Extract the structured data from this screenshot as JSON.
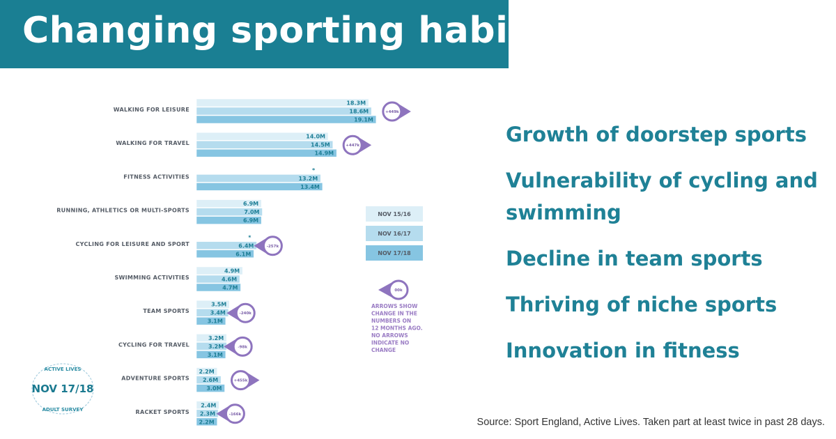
{
  "title": "Changing sporting habits",
  "takeaways": [
    "Growth of doorstep sports",
    "Vulnerability of cycling and swimming",
    "Decline in team sports",
    "Thriving of niche sports",
    "Innovation in fitness"
  ],
  "source": "Source: Sport England, Active Lives. Taken part at least twice in past 28 days.",
  "badge": {
    "top": "ACTIVE LIVES",
    "main": "NOV 17/18",
    "bottom": "ADULT SURVEY"
  },
  "colors": {
    "banner": "#1a7f93",
    "bar1": "#ddeff7",
    "bar2": "#b5dcee",
    "bar3": "#86c5e2",
    "arrow": "#8e74be",
    "text": "#1f8196"
  },
  "chart_data": {
    "type": "bar",
    "orientation": "horizontal",
    "categories": [
      "WALKING FOR LEISURE",
      "WALKING FOR TRAVEL",
      "FITNESS ACTIVITIES",
      "RUNNING, ATHLETICS OR MULTI-SPORTS",
      "CYCLING FOR LEISURE AND SPORT",
      "SWIMMING ACTIVITIES",
      "TEAM SPORTS",
      "CYCLING FOR TRAVEL",
      "ADVENTURE SPORTS",
      "RACKET SPORTS"
    ],
    "series": [
      {
        "name": "NOV 15/16",
        "values": [
          18.3,
          14.0,
          null,
          6.9,
          null,
          4.9,
          3.5,
          3.2,
          2.2,
          2.4
        ],
        "labels": [
          "18.3M",
          "14.0M",
          "*",
          "6.9M",
          "*",
          "4.9M",
          "3.5M",
          "3.2M",
          "2.2M",
          "2.4M"
        ]
      },
      {
        "name": "NOV 16/17",
        "values": [
          18.6,
          14.5,
          13.2,
          7.0,
          6.4,
          4.6,
          3.4,
          3.2,
          2.6,
          2.3
        ],
        "labels": [
          "18.6M",
          "14.5M",
          "13.2M",
          "7.0M",
          "6.4M",
          "4.6M",
          "3.4M",
          "3.2M",
          "2.6M",
          "2.3M"
        ]
      },
      {
        "name": "NOV 17/18",
        "values": [
          19.1,
          14.9,
          13.4,
          6.9,
          6.1,
          4.7,
          3.1,
          3.1,
          3.0,
          2.2
        ],
        "labels": [
          "19.1M",
          "14.9M",
          "13.4M",
          "6.9M",
          "6.1M",
          "4.7M",
          "3.1M",
          "3.1M",
          "3.0M",
          "2.2M"
        ]
      }
    ],
    "changes": [
      {
        "category": "WALKING FOR LEISURE",
        "label": "+449k",
        "direction": "up"
      },
      {
        "category": "WALKING FOR TRAVEL",
        "label": "+447k",
        "direction": "up"
      },
      {
        "category": "CYCLING FOR LEISURE AND SPORT",
        "label": "-257k",
        "direction": "down"
      },
      {
        "category": "TEAM SPORTS",
        "label": "-240k",
        "direction": "down"
      },
      {
        "category": "CYCLING FOR TRAVEL",
        "label": "-98k",
        "direction": "down"
      },
      {
        "category": "ADVENTURE SPORTS",
        "label": "+455k",
        "direction": "up"
      },
      {
        "category": "RACKET SPORTS",
        "label": "-166k",
        "direction": "down"
      }
    ],
    "legend": [
      "NOV 15/16",
      "NOV 16/17",
      "NOV 17/18"
    ],
    "note_example": "00k",
    "note": [
      "ARROWS SHOW",
      "CHANGE IN THE",
      "NUMBERS ON",
      "12 MONTHS AGO.",
      "NO ARROWS",
      "INDICATE NO",
      "CHANGE"
    ],
    "xlim": [
      0,
      20
    ]
  }
}
